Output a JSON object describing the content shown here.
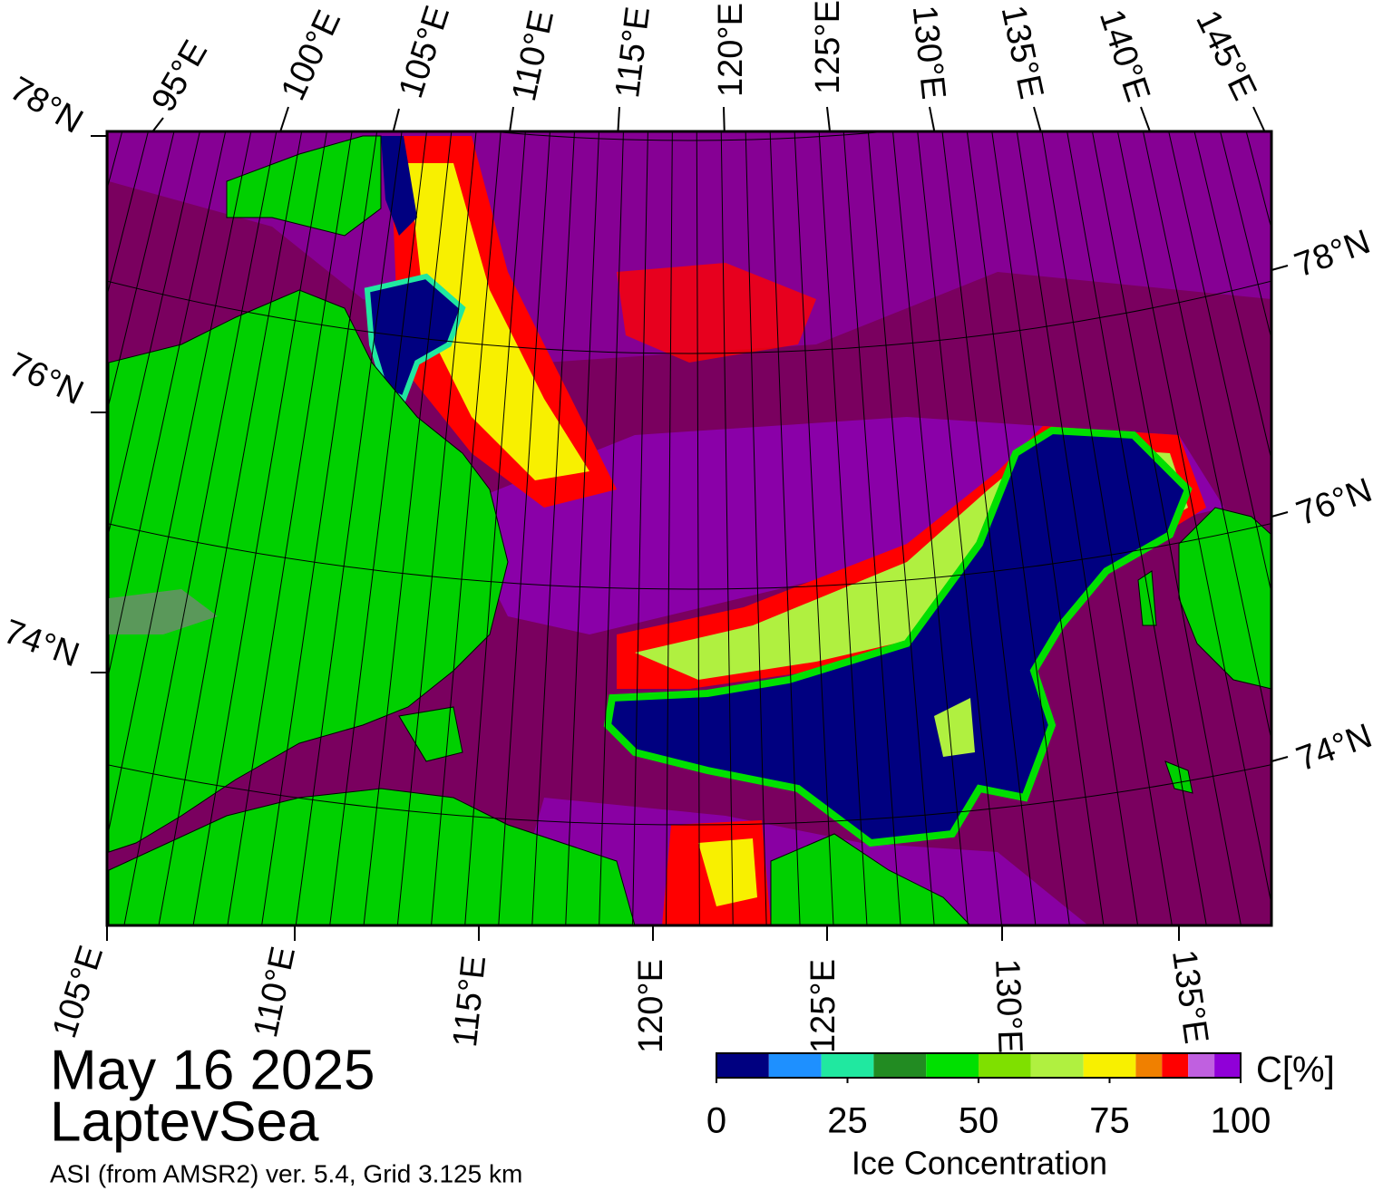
{
  "map": {
    "top_lon_labels": [
      "95°E",
      "100°E",
      "105°E",
      "110°E",
      "115°E",
      "120°E",
      "125°E",
      "130°E",
      "135°E",
      "140°E",
      "145°E"
    ],
    "left_lat_labels": [
      "78°N",
      "76°N",
      "74°N"
    ],
    "right_lat_labels": [
      "78°N",
      "76°N",
      "74°N"
    ],
    "bottom_lon_labels": [
      "105°E",
      "110°E",
      "115°E",
      "120°E",
      "125°E",
      "130°E",
      "135°E"
    ]
  },
  "colorbar": {
    "bins": [
      0,
      10,
      20,
      30,
      40,
      50,
      60,
      70,
      80,
      85,
      90,
      95,
      100
    ],
    "colors": [
      "#000080",
      "#1e90ff",
      "#20e8a0",
      "#228b22",
      "#00e000",
      "#7fe000",
      "#b0f040",
      "#f8f000",
      "#f08000",
      "#ff0000",
      "#c060e0",
      "#9000d8"
    ],
    "ticks": [
      0,
      25,
      50,
      75,
      100
    ],
    "unit_label": "C[%]",
    "label": "Ice Concentration"
  },
  "footer": {
    "date": "May 16 2025",
    "region": "LaptevSea",
    "source": "ASI (from AMSR2) ver. 5.4,  Grid 3.125 km"
  }
}
